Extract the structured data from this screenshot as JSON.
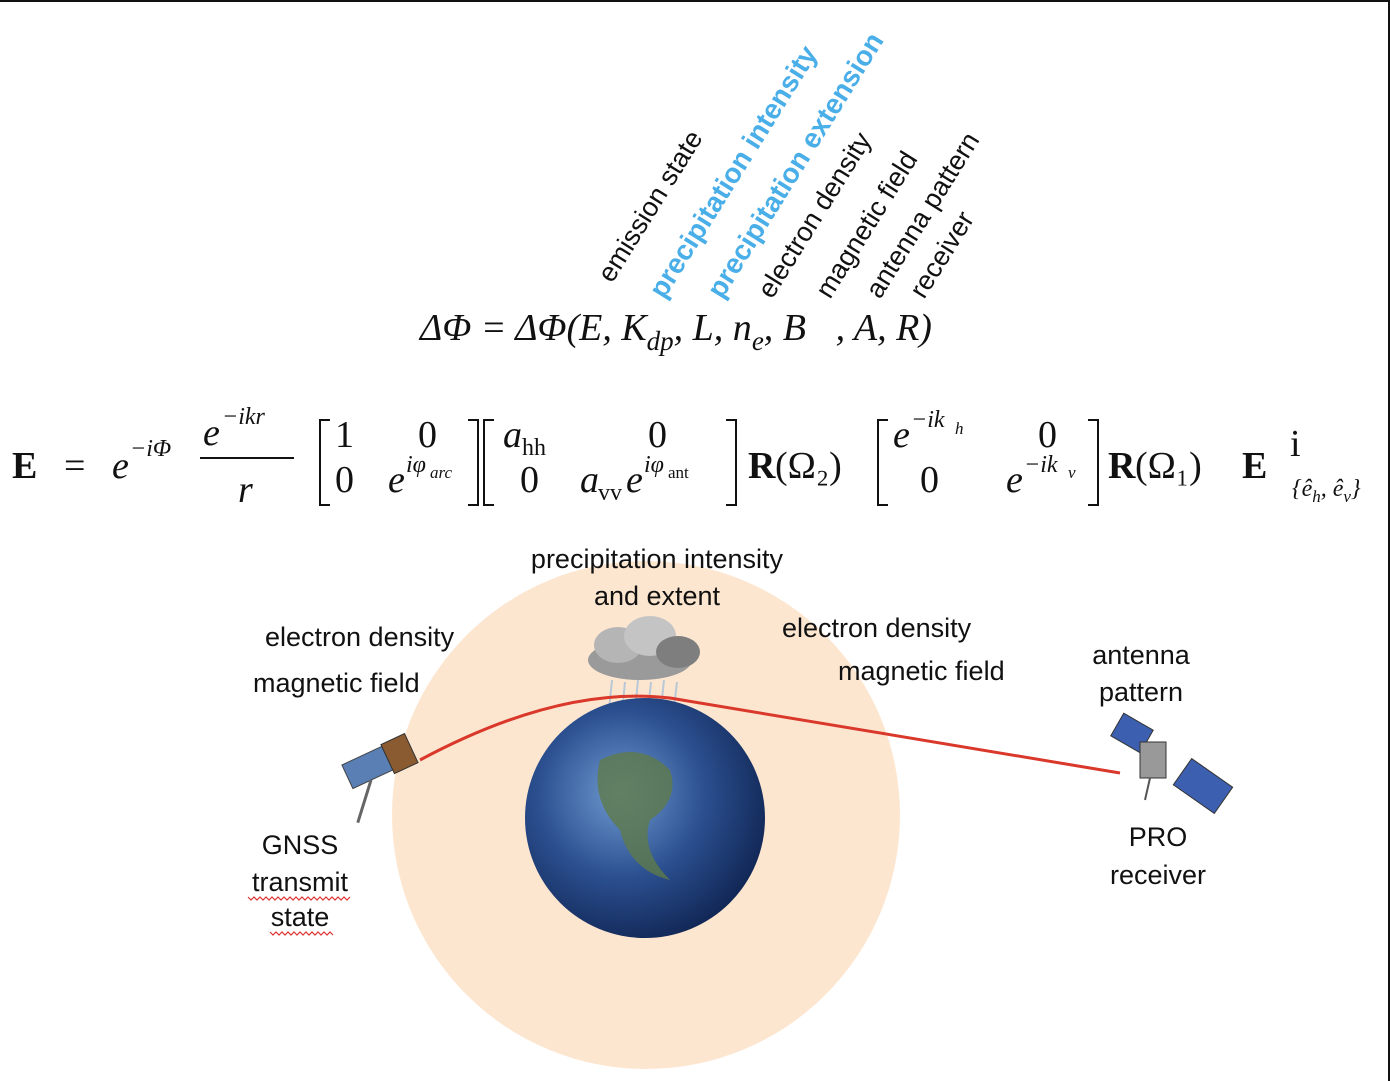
{
  "labels": [
    {
      "text": "emission state",
      "highlight": false
    },
    {
      "text": "precipitation intensity",
      "highlight": true
    },
    {
      "text": "precipitation extension",
      "highlight": true
    },
    {
      "text": "electron density",
      "highlight": false
    },
    {
      "text": "magnetic field",
      "highlight": false
    },
    {
      "text": "antenna pattern",
      "highlight": false
    },
    {
      "text": "receiver",
      "highlight": false
    }
  ],
  "highlight_color": "#4aaee8",
  "equation_1": {
    "parts": [
      "ΔΦ = ΔΦ(E, K",
      "dp",
      ", L, n",
      "e",
      ", B⃗, A, R)"
    ]
  },
  "equation_2": {
    "parts": [
      "E",
      "=",
      "e",
      "−iΦ",
      "e",
      "−ikr",
      "r",
      "1",
      "0",
      "0",
      "e",
      "iφ",
      "arc",
      "a",
      "hh",
      "0",
      "0",
      "a",
      "vv",
      "e",
      "iφ",
      "ant",
      "R",
      "(Ω₂)",
      "e",
      "−ik",
      "h",
      "0",
      "0",
      "e",
      "−ik",
      "v",
      "R",
      "(Ω₁)",
      "E",
      "i",
      "{ê",
      "h",
      ", ê",
      "v",
      "}"
    ]
  },
  "scene": {
    "precipitation": [
      "precipitation intensity",
      "and extent"
    ],
    "left_ionosphere": [
      "electron density",
      "magnetic field"
    ],
    "right_ionosphere": [
      "electron density",
      "magnetic field"
    ],
    "antenna": [
      "antenna",
      "pattern"
    ],
    "transmitter": [
      "GNSS",
      "transmit",
      "state"
    ],
    "receiver": [
      "PRO",
      "receiver"
    ]
  }
}
